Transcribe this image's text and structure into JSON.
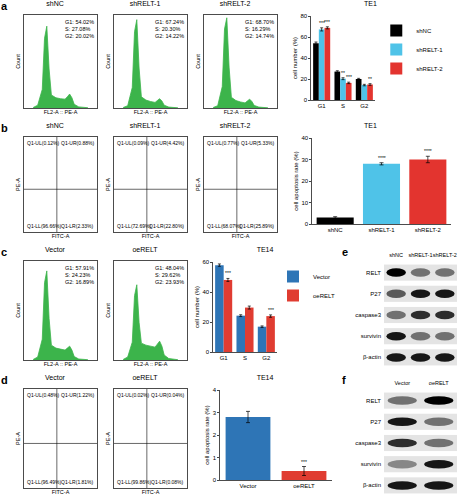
{
  "chart_data": [
    {
      "panel": "a",
      "charts": [
        {
          "type": "area",
          "title": "shNC",
          "x_label": "FL2-A :: PE-A",
          "y_label": "Count",
          "color": "#3cb44b",
          "tick_labels": false,
          "xlim": [
            0,
            800000
          ],
          "ylim": [
            0,
            1000
          ],
          "x": [
            100000,
            150000,
            200000,
            225000,
            250000,
            275000,
            300000,
            350000,
            400000,
            450000,
            475000,
            500000,
            525000,
            550000,
            600000,
            700000
          ],
          "values": [
            5,
            30,
            200,
            750,
            880,
            420,
            140,
            110,
            100,
            95,
            120,
            150,
            110,
            40,
            12,
            3
          ],
          "annotations": [
            "G1: 54.02%",
            "S: 27.08%",
            "G2: 20.02%"
          ]
        },
        {
          "type": "area",
          "title": "shRELT-1",
          "x_label": "FL2-A :: PE-A",
          "y_label": "Count",
          "color": "#3cb44b",
          "tick_labels": false,
          "xlim": [
            0,
            800000
          ],
          "ylim": [
            0,
            1000
          ],
          "x": [
            100000,
            150000,
            200000,
            225000,
            250000,
            275000,
            300000,
            350000,
            400000,
            450000,
            475000,
            500000,
            525000,
            550000,
            600000,
            700000
          ],
          "values": [
            5,
            25,
            220,
            820,
            950,
            430,
            120,
            85,
            70,
            60,
            80,
            100,
            75,
            30,
            10,
            2
          ],
          "annotations": [
            "G1: 67.24%",
            "S: 20.30%",
            "G2: 14.22%"
          ]
        },
        {
          "type": "area",
          "title": "shRELT-2",
          "x_label": "FL2-A :: PE-A",
          "y_label": "Count",
          "color": "#3cb44b",
          "tick_labels": false,
          "xlim": [
            0,
            800000
          ],
          "ylim": [
            0,
            1000
          ],
          "x": [
            100000,
            150000,
            200000,
            225000,
            250000,
            275000,
            300000,
            350000,
            400000,
            450000,
            475000,
            500000,
            525000,
            550000,
            600000,
            700000
          ],
          "values": [
            5,
            25,
            230,
            850,
            970,
            440,
            115,
            80,
            65,
            55,
            75,
            95,
            70,
            28,
            10,
            2
          ],
          "annotations": [
            "G1: 68.70%",
            "S: 16.29%",
            "G2: 14.74%"
          ]
        },
        {
          "type": "bar",
          "title": "TE1",
          "y_label": "cell number (%)",
          "categories": [
            "G1",
            "S",
            "G2"
          ],
          "ylim": [
            0,
            80
          ],
          "yticks": [
            0,
            20,
            40,
            60,
            80
          ],
          "grid": false,
          "legend": "right",
          "series": [
            {
              "name": "shNC",
              "color": "#000000",
              "values": [
                54.02,
                27.08,
                20.02
              ],
              "errors": [
                1.2,
                0.8,
                0.6
              ],
              "significance": [
                null,
                null,
                null
              ]
            },
            {
              "name": "shRELT-1",
              "color": "#4fc3e8",
              "values": [
                67.24,
                20.3,
                14.22
              ],
              "errors": [
                1.5,
                0.9,
                0.7
              ],
              "significance": [
                "***",
                "**",
                null
              ]
            },
            {
              "name": "shRELT-2",
              "color": "#e3342f",
              "values": [
                68.7,
                16.29,
                14.74
              ],
              "errors": [
                1.0,
                0.7,
                0.8
              ],
              "significance": [
                "***",
                "***",
                "**"
              ]
            }
          ]
        }
      ]
    },
    {
      "panel": "b",
      "charts": [
        {
          "type": "quadrant",
          "title": "shNC",
          "x_label": "FITC-A",
          "y_label": "PE-A",
          "tick_labels": false,
          "quadrants": {
            "UL": "Q1-UL(0.12%)",
            "UR": "Q1-UR(0.88%)",
            "LL": "Q1-LL(96.66%)",
            "LR": "Q1-LR(2.33%)"
          }
        },
        {
          "type": "quadrant",
          "title": "shRELT-1",
          "x_label": "FITC-A",
          "y_label": "PE-A",
          "tick_labels": false,
          "quadrants": {
            "UL": "Q1-UL(0.09%)",
            "UR": "Q1-UR(4.42%)",
            "LL": "Q1-LL(72.69%)",
            "LR": "Q1-LR(22.80%)"
          }
        },
        {
          "type": "quadrant",
          "title": "shRELT-2",
          "x_label": "FITC-A",
          "y_label": "PE-A",
          "tick_labels": false,
          "quadrants": {
            "UL": "Q1-UL(0.77%)",
            "UR": "Q1-UR(5.33%)",
            "LL": "Q1-LL(68.07%)",
            "LR": "Q1-LR(25.89%)"
          }
        },
        {
          "type": "bar",
          "title": "TE1",
          "y_label": "cell apoptosis rate (%)",
          "categories": [
            "shNC",
            "shRELT-1",
            "shRELT-2"
          ],
          "values": [
            3,
            28,
            30
          ],
          "errors": [
            0.4,
            0.5,
            1.5
          ],
          "significance": [
            null,
            "****",
            "****"
          ],
          "colors": [
            "#000000",
            "#4fc3e8",
            "#e3342f"
          ],
          "ylim": [
            0,
            40
          ],
          "yticks": [
            0,
            10,
            20,
            30,
            40
          ],
          "grid": false
        }
      ]
    },
    {
      "panel": "c",
      "charts": [
        {
          "type": "area",
          "title": "Vector",
          "x_label": "FL2-A :: PE-A",
          "y_label": "Count",
          "color": "#3cb44b",
          "tick_labels": false,
          "xlim": [
            0,
            800000
          ],
          "ylim": [
            0,
            1000
          ],
          "x": [
            100000,
            150000,
            200000,
            225000,
            250000,
            275000,
            300000,
            350000,
            400000,
            450000,
            475000,
            500000,
            525000,
            550000,
            600000,
            700000
          ],
          "values": [
            5,
            30,
            210,
            780,
            900,
            420,
            150,
            120,
            110,
            100,
            120,
            140,
            100,
            35,
            10,
            3
          ],
          "annotations": [
            "G1: 57.91%",
            "S: 24.23%",
            "G2: 16.89%"
          ]
        },
        {
          "type": "area",
          "title": "oeRELT",
          "x_label": "FL2-A :: PE-A",
          "y_label": "Count",
          "color": "#3cb44b",
          "tick_labels": false,
          "xlim": [
            0,
            800000
          ],
          "ylim": [
            0,
            1000
          ],
          "x": [
            100000,
            150000,
            200000,
            225000,
            250000,
            275000,
            300000,
            350000,
            400000,
            450000,
            475000,
            500000,
            525000,
            550000,
            600000,
            700000
          ],
          "values": [
            5,
            30,
            180,
            650,
            760,
            380,
            170,
            150,
            140,
            130,
            160,
            190,
            140,
            50,
            15,
            3
          ],
          "annotations": [
            "G1: 48.04%",
            "S: 29.62%",
            "G2: 23.93%"
          ]
        },
        {
          "type": "bar",
          "title": "TE14",
          "y_label": "cell number (%)",
          "categories": [
            "G1",
            "S",
            "G2"
          ],
          "ylim": [
            0,
            60
          ],
          "yticks": [
            0,
            20,
            40,
            60
          ],
          "grid": false,
          "legend": "right",
          "series": [
            {
              "name": "Vector",
              "color": "#2e75b6",
              "values": [
                57.91,
                24.23,
                16.89
              ],
              "errors": [
                0.8,
                0.6,
                0.5
              ],
              "significance": [
                null,
                null,
                null
              ]
            },
            {
              "name": "oeRELT",
              "color": "#e03c31",
              "values": [
                48.04,
                29.62,
                23.93
              ],
              "errors": [
                1.0,
                1.0,
                0.8
              ],
              "significance": [
                "***",
                null,
                "***"
              ]
            }
          ]
        }
      ]
    },
    {
      "panel": "d",
      "charts": [
        {
          "type": "quadrant",
          "title": "Vector",
          "x_label": "FITC-A",
          "y_label": "PE-A",
          "tick_labels": false,
          "quadrants": {
            "UL": "Q1-UL(0.48%)",
            "UR": "Q1-UR(1.22%)",
            "LL": "Q1-LL(96.49%)",
            "LR": "Q1-LR(1.81%)"
          }
        },
        {
          "type": "quadrant",
          "title": "oeRELT",
          "x_label": "FITC-A",
          "y_label": "PE-A",
          "tick_labels": false,
          "quadrants": {
            "UL": "Q1-UL(0.02%)",
            "UR": "Q1-UR(0.04%)",
            "LL": "Q1-LL(99.86%)",
            "LR": "Q1-LR(0.08%)"
          }
        },
        {
          "type": "bar",
          "title": "TE14",
          "y_label": "cell apoptosis rate (%)",
          "categories": [
            "Vector",
            "oeRELT"
          ],
          "values": [
            2.8,
            0.4
          ],
          "errors": [
            0.25,
            0.2
          ],
          "significance": [
            null,
            "***"
          ],
          "colors": [
            "#2e75b6",
            "#e03c31"
          ],
          "ylim": [
            0,
            4
          ],
          "yticks": [
            0,
            1,
            2,
            3,
            4
          ],
          "grid": false
        }
      ]
    },
    {
      "panel": "e",
      "charts": [
        {
          "type": "blot",
          "columns": [
            "shNC",
            "shRELT-1",
            "shRELT-2"
          ],
          "rows": [
            {
              "name": "RELT",
              "intensity": [
                1,
                0.5,
                0.5
              ]
            },
            {
              "name": "P27",
              "intensity": [
                0.6,
                0.9,
                0.9
              ]
            },
            {
              "name": "caspase3",
              "intensity": [
                0.5,
                0.8,
                0.8
              ]
            },
            {
              "name": "survivin",
              "intensity": [
                0.9,
                0.5,
                0.5
              ]
            },
            {
              "name": "β-actin",
              "intensity": [
                0.9,
                0.9,
                0.9
              ]
            }
          ]
        }
      ]
    },
    {
      "panel": "f",
      "charts": [
        {
          "type": "blot",
          "columns": [
            "Vector",
            "oeRELT"
          ],
          "rows": [
            {
              "name": "RELT",
              "intensity": [
                0.5,
                1
              ]
            },
            {
              "name": "P27",
              "intensity": [
                0.9,
                0.5
              ]
            },
            {
              "name": "caspase3",
              "intensity": [
                0.8,
                0.5
              ]
            },
            {
              "name": "survivin",
              "intensity": [
                0.4,
                0.9
              ]
            },
            {
              "name": "β-actin",
              "intensity": [
                0.9,
                0.9
              ]
            }
          ]
        }
      ]
    }
  ]
}
